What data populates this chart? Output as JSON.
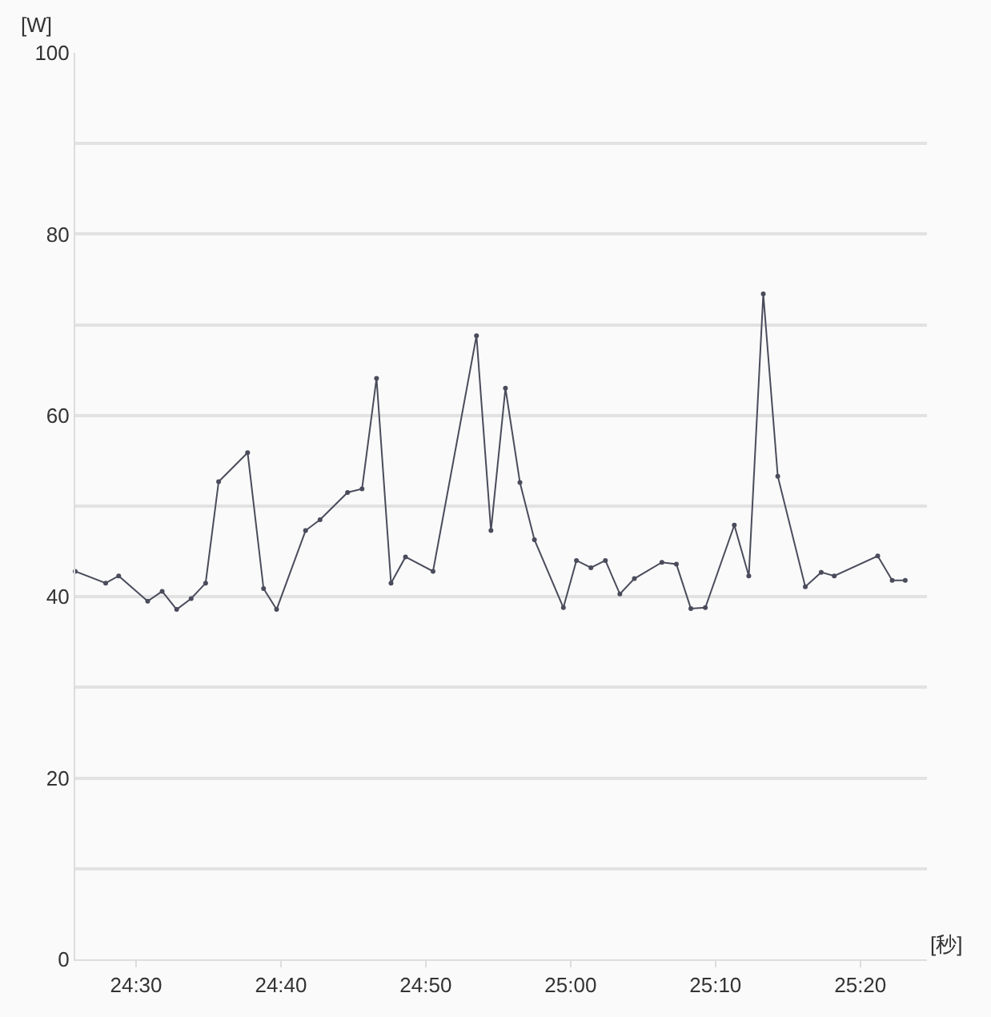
{
  "chart_data": {
    "type": "line",
    "xlabel": "[秒]",
    "ylabel": "[W]",
    "x": [
      1465.8,
      1467.9,
      1468.8,
      1470.8,
      1471.8,
      1472.8,
      1473.8,
      1474.8,
      1475.7,
      1477.7,
      1478.8,
      1479.7,
      1481.7,
      1482.7,
      1484.6,
      1485.6,
      1486.6,
      1487.6,
      1488.6,
      1490.5,
      1493.5,
      1494.5,
      1495.5,
      1496.5,
      1497.5,
      1499.5,
      1500.4,
      1501.4,
      1502.4,
      1503.4,
      1504.4,
      1506.3,
      1507.3,
      1508.3,
      1509.3,
      1511.3,
      1512.3,
      1513.3,
      1514.3,
      1516.2,
      1517.3,
      1518.2,
      1521.2,
      1522.2,
      1523.1
    ],
    "series": [
      {
        "color": "#4a4c5c",
        "values": [
          42.8,
          41.5,
          42.3,
          39.5,
          40.6,
          38.6,
          39.8,
          41.5,
          52.7,
          55.9,
          40.9,
          38.6,
          47.3,
          48.5,
          51.5,
          51.9,
          64.1,
          41.5,
          44.4,
          42.8,
          68.8,
          47.3,
          63.0,
          52.6,
          46.3,
          38.8,
          44.0,
          43.2,
          44.0,
          40.3,
          42.0,
          43.8,
          43.6,
          38.7,
          38.8,
          47.9,
          42.3,
          73.4,
          53.3,
          41.1,
          42.7,
          42.3,
          44.5,
          41.8,
          41.8
        ]
      }
    ],
    "xlim": [
      1465.8,
      1524.6
    ],
    "xticks": [
      {
        "value": 1470,
        "label": "24:30"
      },
      {
        "value": 1480,
        "label": "24:40"
      },
      {
        "value": 1490,
        "label": "24:50"
      },
      {
        "value": 1500,
        "label": "25:00"
      },
      {
        "value": 1510,
        "label": "25:10"
      },
      {
        "value": 1520,
        "label": "25:20"
      }
    ],
    "ylim": [
      0,
      100
    ],
    "yticks": [
      0,
      {
        "value": 10,
        "label": null
      },
      20,
      {
        "value": 30,
        "label": null
      },
      40,
      {
        "value": 50,
        "label": null
      },
      60,
      {
        "value": 70,
        "label": null
      },
      80,
      {
        "value": 90,
        "label": null
      },
      100
    ],
    "grid": "y",
    "marker": "circle",
    "line_style": "solid"
  }
}
